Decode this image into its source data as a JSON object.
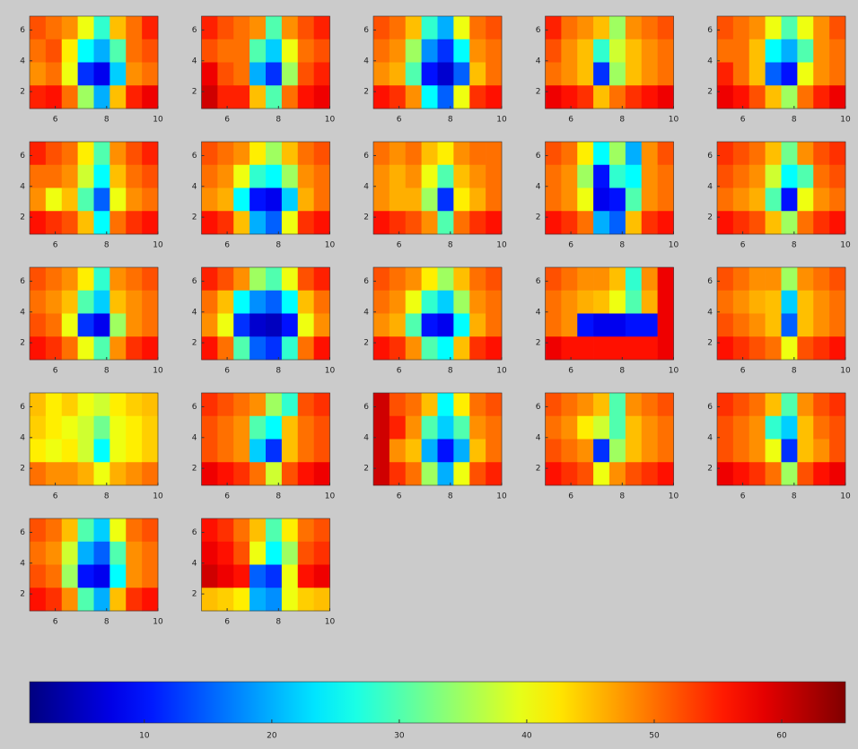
{
  "chart_data": {
    "type": "heatmap",
    "colormap": "jet",
    "xlim": [
      5,
      10
    ],
    "ylim": [
      0.9,
      6.9
    ],
    "xticks": [
      6,
      8,
      10
    ],
    "yticks": [
      2,
      4,
      6
    ],
    "clim": [
      1,
      65
    ],
    "cticks": [
      10,
      20,
      30,
      40,
      50,
      60
    ],
    "panels": [
      {
        "z": [
          [
            52,
            50,
            48,
            40,
            28,
            45,
            50,
            55
          ],
          [
            50,
            52,
            42,
            25,
            20,
            30,
            50,
            52
          ],
          [
            48,
            50,
            40,
            12,
            8,
            22,
            48,
            50
          ],
          [
            55,
            56,
            50,
            35,
            20,
            45,
            55,
            58
          ]
        ]
      },
      {
        "z": [
          [
            55,
            52,
            50,
            48,
            30,
            48,
            52,
            55
          ],
          [
            52,
            50,
            50,
            30,
            22,
            40,
            50,
            52
          ],
          [
            58,
            52,
            50,
            20,
            12,
            35,
            52,
            55
          ],
          [
            60,
            55,
            55,
            45,
            30,
            50,
            56,
            58
          ]
        ]
      },
      {
        "z": [
          [
            52,
            50,
            45,
            28,
            20,
            40,
            50,
            52
          ],
          [
            50,
            48,
            35,
            18,
            12,
            25,
            48,
            50
          ],
          [
            48,
            46,
            30,
            10,
            6,
            15,
            45,
            50
          ],
          [
            56,
            54,
            48,
            25,
            15,
            40,
            54,
            56
          ]
        ]
      },
      {
        "z": [
          [
            55,
            50,
            48,
            45,
            35,
            48,
            50,
            52
          ],
          [
            52,
            48,
            45,
            28,
            38,
            45,
            48,
            50
          ],
          [
            50,
            48,
            45,
            12,
            35,
            45,
            48,
            50
          ],
          [
            58,
            56,
            54,
            45,
            50,
            54,
            56,
            58
          ]
        ]
      },
      {
        "z": [
          [
            52,
            50,
            48,
            40,
            30,
            40,
            48,
            52
          ],
          [
            50,
            50,
            45,
            25,
            20,
            30,
            48,
            50
          ],
          [
            55,
            50,
            45,
            15,
            10,
            40,
            48,
            50
          ],
          [
            58,
            56,
            52,
            45,
            35,
            50,
            55,
            58
          ]
        ]
      },
      {
        "z": [
          [
            55,
            52,
            50,
            42,
            30,
            48,
            52,
            55
          ],
          [
            50,
            50,
            48,
            38,
            25,
            45,
            50,
            52
          ],
          [
            48,
            40,
            45,
            30,
            15,
            40,
            48,
            50
          ],
          [
            56,
            54,
            52,
            45,
            25,
            50,
            54,
            56
          ]
        ]
      },
      {
        "z": [
          [
            52,
            50,
            48,
            42,
            35,
            45,
            50,
            52
          ],
          [
            50,
            48,
            40,
            28,
            25,
            35,
            48,
            50
          ],
          [
            48,
            46,
            25,
            10,
            8,
            22,
            46,
            50
          ],
          [
            56,
            54,
            45,
            20,
            15,
            40,
            54,
            56
          ]
        ]
      },
      {
        "z": [
          [
            50,
            48,
            50,
            45,
            42,
            48,
            50,
            50
          ],
          [
            48,
            46,
            48,
            40,
            30,
            45,
            48,
            50
          ],
          [
            48,
            46,
            46,
            35,
            12,
            42,
            46,
            50
          ],
          [
            56,
            54,
            52,
            48,
            30,
            50,
            54,
            56
          ]
        ]
      },
      {
        "z": [
          [
            52,
            50,
            42,
            25,
            35,
            20,
            48,
            52
          ],
          [
            50,
            48,
            35,
            10,
            28,
            25,
            48,
            50
          ],
          [
            50,
            48,
            40,
            8,
            10,
            30,
            48,
            50
          ],
          [
            56,
            54,
            50,
            20,
            15,
            45,
            54,
            56
          ]
        ]
      },
      {
        "z": [
          [
            54,
            52,
            50,
            45,
            32,
            48,
            52,
            54
          ],
          [
            52,
            50,
            48,
            38,
            25,
            30,
            50,
            52
          ],
          [
            50,
            48,
            46,
            30,
            10,
            40,
            48,
            50
          ],
          [
            56,
            54,
            52,
            45,
            35,
            50,
            54,
            56
          ]
        ]
      },
      {
        "z": [
          [
            52,
            50,
            48,
            42,
            28,
            48,
            50,
            52
          ],
          [
            50,
            48,
            45,
            30,
            22,
            45,
            48,
            50
          ],
          [
            52,
            50,
            40,
            12,
            8,
            35,
            48,
            50
          ],
          [
            56,
            54,
            50,
            40,
            30,
            48,
            54,
            56
          ]
        ]
      },
      {
        "z": [
          [
            55,
            52,
            48,
            35,
            30,
            40,
            52,
            55
          ],
          [
            50,
            45,
            25,
            18,
            15,
            25,
            45,
            50
          ],
          [
            48,
            40,
            12,
            6,
            5,
            10,
            40,
            48
          ],
          [
            56,
            50,
            30,
            15,
            12,
            28,
            50,
            56
          ]
        ]
      },
      {
        "z": [
          [
            52,
            50,
            48,
            42,
            35,
            45,
            50,
            52
          ],
          [
            50,
            48,
            40,
            28,
            22,
            35,
            48,
            50
          ],
          [
            48,
            46,
            30,
            10,
            8,
            25,
            46,
            50
          ],
          [
            56,
            54,
            48,
            30,
            25,
            45,
            54,
            56
          ]
        ]
      },
      {
        "z": [
          [
            52,
            50,
            48,
            48,
            45,
            28,
            48,
            58
          ],
          [
            50,
            48,
            46,
            45,
            40,
            30,
            46,
            58
          ],
          [
            50,
            48,
            10,
            8,
            8,
            10,
            10,
            58
          ],
          [
            58,
            56,
            56,
            56,
            56,
            56,
            56,
            58
          ]
        ]
      },
      {
        "z": [
          [
            52,
            50,
            48,
            48,
            35,
            48,
            50,
            52
          ],
          [
            50,
            48,
            46,
            45,
            22,
            45,
            48,
            50
          ],
          [
            52,
            50,
            48,
            45,
            15,
            45,
            48,
            50
          ],
          [
            56,
            54,
            52,
            50,
            40,
            52,
            54,
            56
          ]
        ]
      },
      {
        "z": [
          [
            45,
            42,
            44,
            40,
            38,
            42,
            44,
            45
          ],
          [
            44,
            42,
            40,
            38,
            32,
            40,
            42,
            44
          ],
          [
            42,
            40,
            42,
            38,
            25,
            40,
            42,
            44
          ],
          [
            50,
            48,
            48,
            46,
            40,
            46,
            48,
            50
          ]
        ]
      },
      {
        "z": [
          [
            54,
            52,
            50,
            48,
            35,
            28,
            52,
            54
          ],
          [
            52,
            50,
            48,
            30,
            25,
            45,
            50,
            52
          ],
          [
            52,
            50,
            48,
            22,
            12,
            45,
            50,
            52
          ],
          [
            58,
            56,
            54,
            50,
            38,
            52,
            56,
            58
          ]
        ]
      },
      {
        "z": [
          [
            60,
            52,
            50,
            45,
            25,
            42,
            50,
            52
          ],
          [
            60,
            55,
            48,
            30,
            22,
            30,
            48,
            50
          ],
          [
            60,
            48,
            45,
            20,
            10,
            20,
            45,
            50
          ],
          [
            60,
            54,
            50,
            35,
            20,
            40,
            52,
            55
          ]
        ]
      },
      {
        "z": [
          [
            52,
            50,
            48,
            45,
            30,
            48,
            50,
            52
          ],
          [
            50,
            48,
            42,
            38,
            30,
            45,
            48,
            50
          ],
          [
            52,
            50,
            48,
            12,
            35,
            45,
            48,
            50
          ],
          [
            56,
            54,
            52,
            40,
            48,
            52,
            54,
            56
          ]
        ]
      },
      {
        "z": [
          [
            54,
            52,
            50,
            45,
            30,
            48,
            52,
            54
          ],
          [
            52,
            50,
            48,
            28,
            22,
            45,
            50,
            52
          ],
          [
            52,
            50,
            48,
            40,
            12,
            45,
            48,
            52
          ],
          [
            58,
            56,
            54,
            50,
            35,
            52,
            56,
            58
          ]
        ]
      },
      {
        "z": [
          [
            52,
            50,
            45,
            30,
            22,
            40,
            50,
            52
          ],
          [
            50,
            48,
            38,
            20,
            15,
            30,
            48,
            50
          ],
          [
            52,
            50,
            35,
            10,
            8,
            25,
            48,
            50
          ],
          [
            56,
            54,
            48,
            30,
            20,
            45,
            54,
            56
          ]
        ]
      },
      {
        "z": [
          [
            56,
            54,
            50,
            45,
            30,
            42,
            50,
            52
          ],
          [
            58,
            56,
            52,
            40,
            25,
            35,
            52,
            54
          ],
          [
            60,
            58,
            56,
            15,
            12,
            40,
            56,
            58
          ],
          [
            45,
            44,
            42,
            20,
            18,
            40,
            44,
            45
          ]
        ]
      }
    ]
  }
}
